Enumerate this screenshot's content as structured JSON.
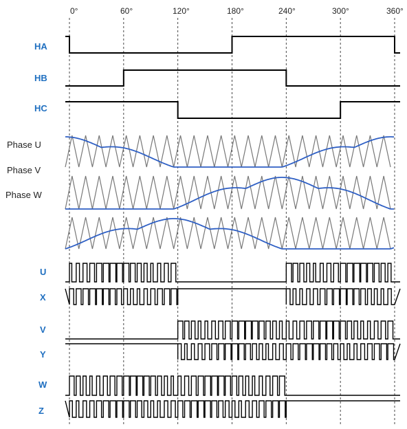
{
  "angle_labels": [
    "0°",
    "60°",
    "120°",
    "180°",
    "240°",
    "300°",
    "360°"
  ],
  "hall_signals": [
    {
      "id": "ha",
      "label": "HA",
      "levels": [
        0,
        0,
        0,
        1,
        1,
        1
      ]
    },
    {
      "id": "hb",
      "label": "HB",
      "levels": [
        0,
        1,
        1,
        1,
        0,
        0
      ]
    },
    {
      "id": "hc",
      "label": "HC",
      "levels": [
        1,
        1,
        0,
        0,
        0,
        1
      ]
    }
  ],
  "phase_labels": [
    "Phase U",
    "Phase V",
    "Phase W"
  ],
  "pwm_groups": [
    {
      "top": "U",
      "bottom": "X"
    },
    {
      "top": "V",
      "bottom": "Y"
    },
    {
      "top": "W",
      "bottom": "Z"
    }
  ],
  "colors": {
    "accent": "#1f6fc0",
    "sine": "#2e5fc4",
    "carrier": "#777777"
  }
}
